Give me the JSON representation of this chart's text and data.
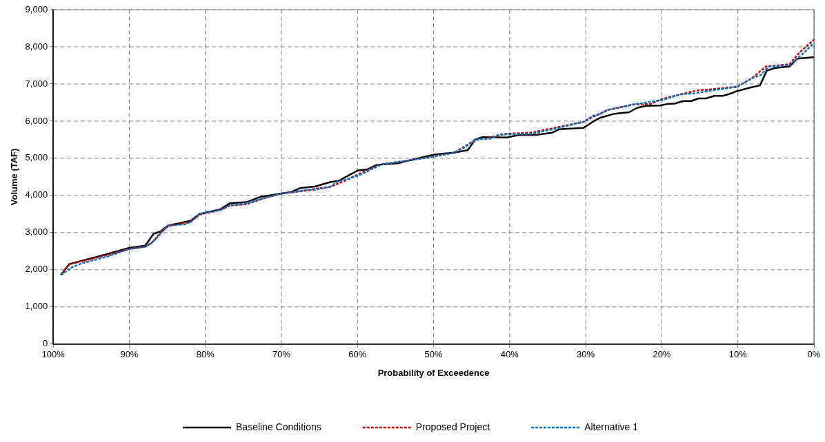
{
  "chart_data": {
    "type": "line",
    "xlabel": "Probability of Exceedence",
    "ylabel": "Volume (TAF)",
    "xlim": [
      100,
      0
    ],
    "xticks": [
      {
        "value": 100,
        "label": "100%"
      },
      {
        "value": 90,
        "label": "90%"
      },
      {
        "value": 80,
        "label": "80%"
      },
      {
        "value": 70,
        "label": "70%"
      },
      {
        "value": 60,
        "label": "60%"
      },
      {
        "value": 50,
        "label": "50%"
      },
      {
        "value": 40,
        "label": "40%"
      },
      {
        "value": 30,
        "label": "30%"
      },
      {
        "value": 20,
        "label": "20%"
      },
      {
        "value": 10,
        "label": "10%"
      },
      {
        "value": 0,
        "label": "0%"
      }
    ],
    "ylim": [
      0,
      9000
    ],
    "yticks": [
      0,
      {
        "value": 1000,
        "label": "1,000"
      },
      {
        "value": 2000,
        "label": "2,000"
      },
      {
        "value": 3000,
        "label": "3,000"
      },
      {
        "value": 4000,
        "label": "4,000"
      },
      {
        "value": 5000,
        "label": "5,000"
      },
      {
        "value": 6000,
        "label": "6,000"
      },
      {
        "value": 7000,
        "label": "7,000"
      },
      {
        "value": 8000,
        "label": "8,000"
      },
      {
        "value": 9000,
        "label": "9,000"
      }
    ],
    "grid": true,
    "legend": "bottom",
    "marker": "none",
    "series": [
      {
        "name": "Baseline Conditions",
        "color": "#000000",
        "line_style": "solid",
        "x": [
          99,
          97.9,
          92.8,
          90,
          87.9,
          86.8,
          85.9,
          84.9,
          81.9,
          80.8,
          78,
          76.8,
          74.6,
          72.8,
          70.1,
          68.8,
          67.5,
          65.6,
          63.6,
          62.5,
          60,
          58.7,
          57.5,
          54.6,
          53.3,
          49.9,
          48.6,
          47.3,
          45.5,
          44.5,
          43.6,
          40.4,
          38.8,
          36.6,
          34.4,
          33.5,
          30.3,
          29,
          28.1,
          26.2,
          24.3,
          23.2,
          22.1,
          20.2,
          19.3,
          18.3,
          17.2,
          16.1,
          15.2,
          14.2,
          13.1,
          12,
          11.1,
          10.1,
          8.2,
          7.1,
          6.2,
          5.1,
          3.2,
          2.2,
          0
        ],
        "values": [
          1860,
          2150,
          2430,
          2590,
          2650,
          2970,
          3030,
          3190,
          3320,
          3500,
          3630,
          3790,
          3820,
          3960,
          4050,
          4090,
          4200,
          4240,
          4360,
          4390,
          4670,
          4700,
          4820,
          4870,
          4940,
          5100,
          5130,
          5150,
          5220,
          5510,
          5570,
          5560,
          5630,
          5630,
          5690,
          5780,
          5820,
          5990,
          6090,
          6200,
          6240,
          6360,
          6410,
          6420,
          6460,
          6470,
          6540,
          6540,
          6610,
          6610,
          6680,
          6680,
          6730,
          6810,
          6910,
          6960,
          7360,
          7430,
          7470,
          7680,
          7720
        ]
      },
      {
        "name": "Proposed Project",
        "color": "#c00000",
        "line_style": "dashed",
        "x": [
          99,
          97.9,
          93.1,
          90,
          87.9,
          86.8,
          85.9,
          84.9,
          81.9,
          80.8,
          78,
          76.8,
          74.6,
          72.8,
          70.1,
          66.3,
          65.6,
          63.6,
          61.6,
          60,
          56.8,
          53.3,
          49.9,
          47.3,
          44.5,
          43,
          40.4,
          37.2,
          34.3,
          30.3,
          29,
          27.1,
          23.7,
          21.5,
          19.9,
          18.3,
          15.2,
          13.3,
          10.1,
          8.2,
          6.3,
          3.2,
          1.9,
          0
        ],
        "values": [
          1860,
          2150,
          2380,
          2560,
          2620,
          2770,
          3000,
          3170,
          3290,
          3480,
          3610,
          3730,
          3760,
          3890,
          4050,
          4140,
          4180,
          4230,
          4400,
          4560,
          4840,
          4940,
          5050,
          5150,
          5490,
          5540,
          5660,
          5690,
          5810,
          5980,
          6120,
          6300,
          6450,
          6460,
          6600,
          6680,
          6830,
          6860,
          6930,
          7150,
          7470,
          7530,
          7850,
          8190
        ]
      },
      {
        "name": "Alternative 1",
        "color": "#0070c0",
        "line_style": "dashed",
        "x": [
          99,
          97.5,
          96.3,
          92.8,
          90,
          87.9,
          87.1,
          86.3,
          84.9,
          82.7,
          81.9,
          80.8,
          78,
          76.8,
          74.6,
          70.7,
          66.3,
          66,
          63.6,
          62.5,
          61.6,
          59.7,
          56.8,
          53.3,
          49.9,
          47.3,
          45.8,
          44.5,
          42.5,
          41.4,
          37.2,
          34.3,
          30.3,
          29,
          28.4,
          27.1,
          23.7,
          19.9,
          17.4,
          15.8,
          13.3,
          10.1,
          8.2,
          7,
          6,
          3.2,
          1.6,
          0
        ],
        "values": [
          1860,
          2070,
          2170,
          2360,
          2560,
          2620,
          2710,
          2880,
          3190,
          3220,
          3290,
          3500,
          3610,
          3730,
          3790,
          4020,
          4160,
          4140,
          4230,
          4390,
          4420,
          4550,
          4840,
          4940,
          5050,
          5150,
          5310,
          5510,
          5530,
          5640,
          5660,
          5780,
          5980,
          6150,
          6160,
          6300,
          6450,
          6570,
          6730,
          6740,
          6830,
          6920,
          7150,
          7240,
          7460,
          7510,
          7790,
          8100
        ]
      }
    ]
  }
}
